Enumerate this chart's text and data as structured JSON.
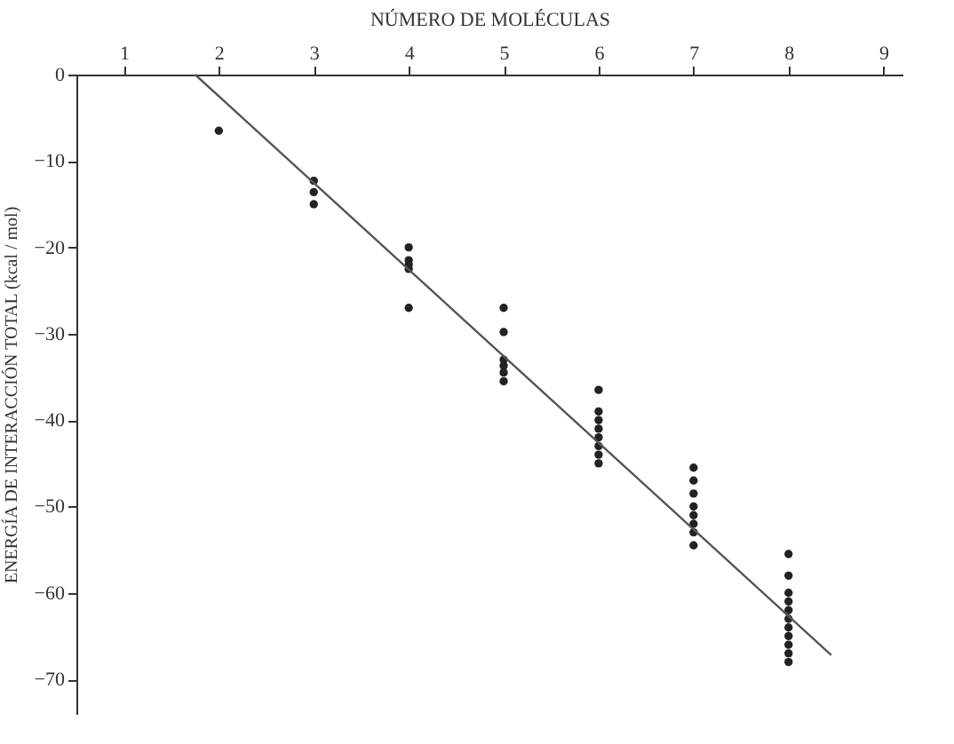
{
  "chart_data": {
    "type": "scatter",
    "xlabel": "NÚMERO DE MOLÉCULAS",
    "ylabel": "ENERGÍA DE INTERACCIÓN TOTAL (kcal / mol)",
    "xlim": [
      0.5,
      9.2
    ],
    "xticks": [
      1,
      2,
      3,
      4,
      5,
      6,
      7,
      8,
      9
    ],
    "ylim": [
      -74,
      0
    ],
    "yticks": [
      0,
      -10,
      -20,
      -30,
      -40,
      -50,
      -60,
      -70
    ],
    "grid": false,
    "series": [
      {
        "color": "#222222",
        "marker": "circle",
        "x": [
          2,
          3,
          3,
          3,
          4,
          4,
          4,
          4,
          4,
          5,
          5,
          5,
          5,
          5,
          5,
          6,
          6,
          6,
          6,
          6,
          6,
          6,
          6,
          7,
          7,
          7,
          7,
          7,
          7,
          7,
          7,
          8,
          8,
          8,
          8,
          8,
          8,
          8,
          8,
          8,
          8,
          8
        ],
        "values": [
          -6.5,
          -12.3,
          -13.6,
          -15,
          -20,
          -21.5,
          -22,
          -22.5,
          -27,
          -27,
          -29.8,
          -33,
          -33.7,
          -34.5,
          -35.5,
          -36.5,
          -39,
          -40,
          -41,
          -42,
          -43,
          -44,
          -45,
          -45.5,
          -47,
          -48.5,
          -50,
          -51,
          -52,
          -53,
          -54.5,
          -55.5,
          -58,
          -60,
          -61,
          -62,
          -63,
          -64,
          -65,
          -66,
          -67,
          -68
        ]
      },
      {
        "type": "line",
        "color": "#555555",
        "line_style": "solid",
        "x": [
          1.75,
          8.45
        ],
        "values": [
          0,
          -67.2
        ]
      }
    ]
  }
}
